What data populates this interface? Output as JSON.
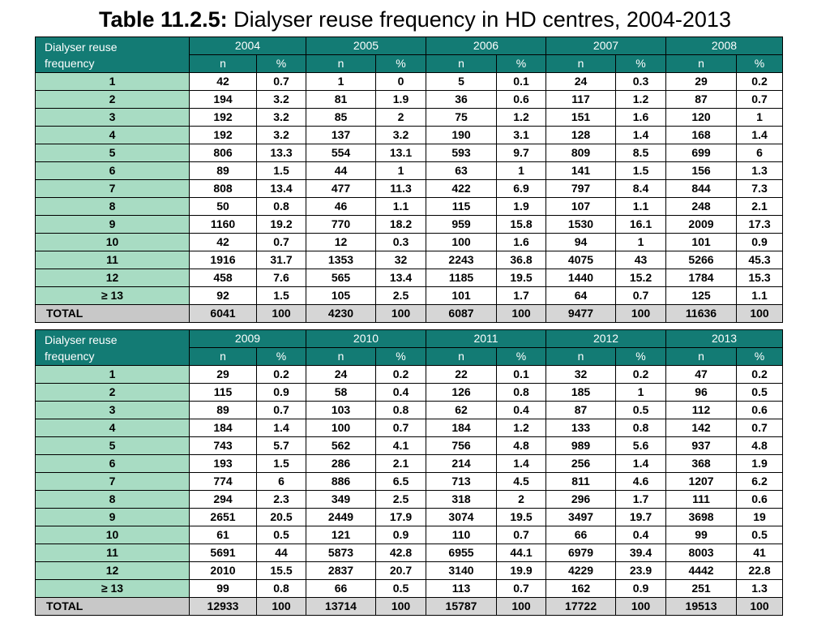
{
  "title": {
    "prefix": "Table 11.2.5:",
    "text": "Dialyser reuse frequency in HD centres, 2004-2013"
  },
  "header": {
    "corner_line1": "Dialyser reuse",
    "corner_line2": "frequency",
    "n": "n",
    "pct": "%",
    "total_label": "TOTAL"
  },
  "tables": [
    {
      "years": [
        "2004",
        "2005",
        "2006",
        "2007",
        "2008"
      ],
      "rows": [
        {
          "label": "1",
          "cells": [
            "42",
            "0.7",
            "1",
            "0",
            "5",
            "0.1",
            "24",
            "0.3",
            "29",
            "0.2"
          ]
        },
        {
          "label": "2",
          "cells": [
            "194",
            "3.2",
            "81",
            "1.9",
            "36",
            "0.6",
            "117",
            "1.2",
            "87",
            "0.7"
          ]
        },
        {
          "label": "3",
          "cells": [
            "192",
            "3.2",
            "85",
            "2",
            "75",
            "1.2",
            "151",
            "1.6",
            "120",
            "1"
          ]
        },
        {
          "label": "4",
          "cells": [
            "192",
            "3.2",
            "137",
            "3.2",
            "190",
            "3.1",
            "128",
            "1.4",
            "168",
            "1.4"
          ]
        },
        {
          "label": "5",
          "cells": [
            "806",
            "13.3",
            "554",
            "13.1",
            "593",
            "9.7",
            "809",
            "8.5",
            "699",
            "6"
          ]
        },
        {
          "label": "6",
          "cells": [
            "89",
            "1.5",
            "44",
            "1",
            "63",
            "1",
            "141",
            "1.5",
            "156",
            "1.3"
          ]
        },
        {
          "label": "7",
          "cells": [
            "808",
            "13.4",
            "477",
            "11.3",
            "422",
            "6.9",
            "797",
            "8.4",
            "844",
            "7.3"
          ]
        },
        {
          "label": "8",
          "cells": [
            "50",
            "0.8",
            "46",
            "1.1",
            "115",
            "1.9",
            "107",
            "1.1",
            "248",
            "2.1"
          ]
        },
        {
          "label": "9",
          "cells": [
            "1160",
            "19.2",
            "770",
            "18.2",
            "959",
            "15.8",
            "1530",
            "16.1",
            "2009",
            "17.3"
          ]
        },
        {
          "label": "10",
          "cells": [
            "42",
            "0.7",
            "12",
            "0.3",
            "100",
            "1.6",
            "94",
            "1",
            "101",
            "0.9"
          ]
        },
        {
          "label": "11",
          "cells": [
            "1916",
            "31.7",
            "1353",
            "32",
            "2243",
            "36.8",
            "4075",
            "43",
            "5266",
            "45.3"
          ]
        },
        {
          "label": "12",
          "cells": [
            "458",
            "7.6",
            "565",
            "13.4",
            "1185",
            "19.5",
            "1440",
            "15.2",
            "1784",
            "15.3"
          ]
        },
        {
          "label": "≥ 13",
          "cells": [
            "92",
            "1.5",
            "105",
            "2.5",
            "101",
            "1.7",
            "64",
            "0.7",
            "125",
            "1.1"
          ]
        }
      ],
      "total": [
        "6041",
        "100",
        "4230",
        "100",
        "6087",
        "100",
        "9477",
        "100",
        "11636",
        "100"
      ]
    },
    {
      "years": [
        "2009",
        "2010",
        "2011",
        "2012",
        "2013"
      ],
      "rows": [
        {
          "label": "1",
          "cells": [
            "29",
            "0.2",
            "24",
            "0.2",
            "22",
            "0.1",
            "32",
            "0.2",
            "47",
            "0.2"
          ]
        },
        {
          "label": "2",
          "cells": [
            "115",
            "0.9",
            "58",
            "0.4",
            "126",
            "0.8",
            "185",
            "1",
            "96",
            "0.5"
          ]
        },
        {
          "label": "3",
          "cells": [
            "89",
            "0.7",
            "103",
            "0.8",
            "62",
            "0.4",
            "87",
            "0.5",
            "112",
            "0.6"
          ]
        },
        {
          "label": "4",
          "cells": [
            "184",
            "1.4",
            "100",
            "0.7",
            "184",
            "1.2",
            "133",
            "0.8",
            "142",
            "0.7"
          ]
        },
        {
          "label": "5",
          "cells": [
            "743",
            "5.7",
            "562",
            "4.1",
            "756",
            "4.8",
            "989",
            "5.6",
            "937",
            "4.8"
          ]
        },
        {
          "label": "6",
          "cells": [
            "193",
            "1.5",
            "286",
            "2.1",
            "214",
            "1.4",
            "256",
            "1.4",
            "368",
            "1.9"
          ]
        },
        {
          "label": "7",
          "cells": [
            "774",
            "6",
            "886",
            "6.5",
            "713",
            "4.5",
            "811",
            "4.6",
            "1207",
            "6.2"
          ]
        },
        {
          "label": "8",
          "cells": [
            "294",
            "2.3",
            "349",
            "2.5",
            "318",
            "2",
            "296",
            "1.7",
            "111",
            "0.6"
          ]
        },
        {
          "label": "9",
          "cells": [
            "2651",
            "20.5",
            "2449",
            "17.9",
            "3074",
            "19.5",
            "3497",
            "19.7",
            "3698",
            "19"
          ]
        },
        {
          "label": "10",
          "cells": [
            "61",
            "0.5",
            "121",
            "0.9",
            "110",
            "0.7",
            "66",
            "0.4",
            "99",
            "0.5"
          ]
        },
        {
          "label": "11",
          "cells": [
            "5691",
            "44",
            "5873",
            "42.8",
            "6955",
            "44.1",
            "6979",
            "39.4",
            "8003",
            "41"
          ]
        },
        {
          "label": "12",
          "cells": [
            "2010",
            "15.5",
            "2837",
            "20.7",
            "3140",
            "19.9",
            "4229",
            "23.9",
            "4442",
            "22.8"
          ]
        },
        {
          "label": "≥ 13",
          "cells": [
            "99",
            "0.8",
            "66",
            "0.5",
            "113",
            "0.7",
            "162",
            "0.9",
            "251",
            "1.3"
          ]
        }
      ],
      "total": [
        "12933",
        "100",
        "13714",
        "100",
        "15787",
        "100",
        "17722",
        "100",
        "19513",
        "100"
      ]
    }
  ]
}
